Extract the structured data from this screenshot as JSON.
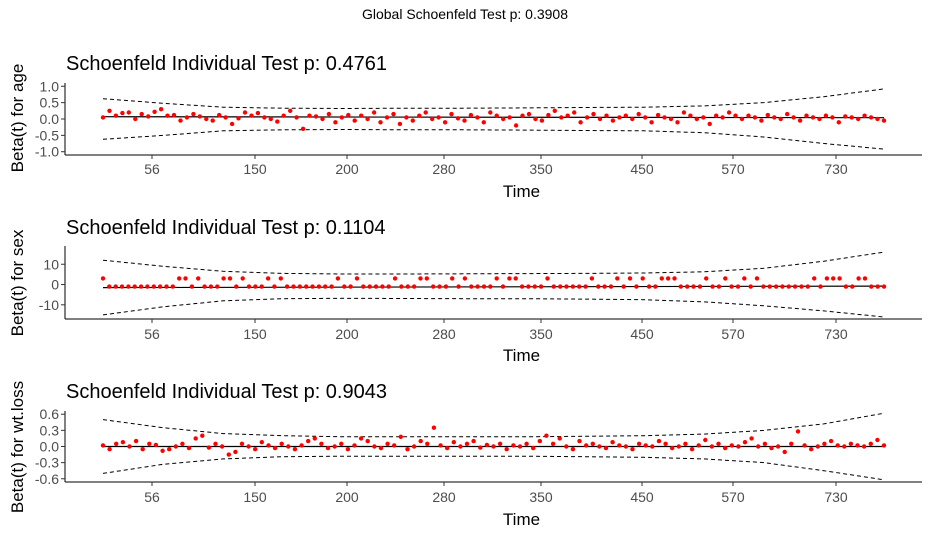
{
  "global_title": "Global Schoenfeld Test p: 0.3908",
  "chart_data": [
    {
      "type": "scatter",
      "title": "Schoenfeld Individual Test p: 0.4761",
      "xlabel": "Time",
      "ylabel": "Beta(t) for age",
      "x_tick_labels": [
        "56",
        "150",
        "200",
        "280",
        "350",
        "450",
        "570",
        "730"
      ],
      "y_ticks": [
        1.0,
        0.5,
        0.0,
        -0.5,
        -1.0
      ],
      "y_tick_labels": [
        "1.0",
        "0.5",
        "0.0",
        "-0.5",
        "-1.0"
      ],
      "ylim": [
        -1.1,
        1.1
      ],
      "point_color": "#ff0000",
      "series": [
        {
          "name": "residuals",
          "values": [
            0.05,
            0.25,
            0.1,
            0.18,
            0.2,
            0.0,
            0.15,
            0.08,
            0.22,
            0.3,
            0.1,
            0.12,
            -0.05,
            0.05,
            0.15,
            0.08,
            0.0,
            -0.05,
            0.12,
            0.05,
            -0.15,
            0.02,
            0.2,
            0.1,
            0.18,
            0.05,
            0.0,
            -0.08,
            0.1,
            0.25,
            0.05,
            -0.3,
            0.1,
            0.08,
            0.0,
            0.15,
            -0.1,
            0.05,
            0.12,
            -0.05,
            0.1,
            0.0,
            0.2,
            -0.1,
            0.05,
            0.15,
            -0.15,
            0.05,
            -0.05,
            0.1,
            0.2,
            0.0,
            0.05,
            -0.1,
            0.15,
            0.02,
            -0.05,
            0.12,
            0.05,
            -0.1,
            0.2,
            0.1,
            0.0,
            0.05,
            -0.2,
            0.1,
            0.15,
            0.0,
            -0.05,
            0.12,
            0.25,
            0.05,
            0.1,
            0.2,
            -0.1,
            0.05,
            0.15,
            0.0,
            0.1,
            -0.05,
            0.05,
            0.1,
            0.0,
            0.15,
            0.05,
            -0.1,
            0.12,
            0.05,
            0.0,
            -0.1,
            0.2,
            0.1,
            0.0,
            0.05,
            -0.15,
            0.1,
            0.05,
            0.2,
            0.1,
            0.0,
            0.1,
            0.05,
            -0.05,
            0.12,
            0.05,
            0.0,
            0.15,
            0.05,
            -0.05,
            0.1,
            0.05,
            0.0,
            0.1,
            0.05,
            -0.1,
            0.08,
            0.05,
            0.0,
            0.1,
            0.05,
            0.0,
            -0.05
          ]
        },
        {
          "name": "smooth",
          "values": [
            0.07,
            0.04
          ]
        },
        {
          "name": "ci_upper",
          "values": [
            0.62,
            0.48,
            0.36,
            0.33,
            0.32,
            0.33,
            0.33,
            0.34,
            0.35,
            0.36,
            0.4,
            0.5,
            0.68,
            0.92
          ]
        },
        {
          "name": "ci_lower",
          "values": [
            -0.62,
            -0.5,
            -0.36,
            -0.33,
            -0.32,
            -0.33,
            -0.33,
            -0.34,
            -0.35,
            -0.36,
            -0.42,
            -0.55,
            -0.75,
            -0.92
          ]
        }
      ]
    },
    {
      "type": "scatter",
      "title": "Schoenfeld Individual Test p: 0.1104",
      "xlabel": "Time",
      "ylabel": "Beta(t) for sex",
      "x_tick_labels": [
        "56",
        "150",
        "200",
        "280",
        "350",
        "450",
        "570",
        "730"
      ],
      "y_ticks": [
        10,
        0,
        -10
      ],
      "y_tick_labels": [
        "10",
        "0",
        "-10"
      ],
      "ylim": [
        -17,
        19
      ],
      "point_color": "#ff0000",
      "series": [
        {
          "name": "residuals",
          "values": [
            3,
            -1,
            -1,
            -1,
            -1,
            -1,
            -1,
            -1,
            -1,
            -1,
            -1,
            -1,
            3,
            3,
            -1,
            3,
            -1,
            -1,
            -1,
            3,
            3,
            -1,
            3,
            -1,
            -1,
            -1,
            3,
            -1,
            3,
            -1,
            -1,
            -1,
            -1,
            -1,
            -1,
            -1,
            -1,
            3,
            -1,
            -1,
            3,
            -1,
            -1,
            -1,
            -1,
            -1,
            3,
            -1,
            -1,
            -1,
            3,
            3,
            -1,
            -1,
            -1,
            3,
            -1,
            3,
            -1,
            -1,
            -1,
            -1,
            3,
            -1,
            3,
            3,
            -1,
            -1,
            -1,
            -1,
            3,
            -1,
            -1,
            -1,
            -1,
            -1,
            -1,
            3,
            -1,
            -1,
            -1,
            3,
            -1,
            3,
            -1,
            3,
            -1,
            -1,
            3,
            3,
            3,
            -1,
            -1,
            -1,
            -1,
            3,
            -1,
            -1,
            3,
            -1,
            -1,
            3,
            -1,
            3,
            -1,
            -1,
            -1,
            -1,
            -1,
            -1,
            -1,
            -1,
            3,
            -1,
            3,
            3,
            3,
            -1,
            -1,
            3,
            3,
            -1,
            -1,
            -1
          ]
        },
        {
          "name": "smooth",
          "values": [
            -1.5,
            -0.8
          ]
        },
        {
          "name": "ci_upper",
          "values": [
            12,
            9,
            6.5,
            5.5,
            5.2,
            5.2,
            5.3,
            5.4,
            5.5,
            5.7,
            6.3,
            8,
            11.5,
            16
          ]
        },
        {
          "name": "ci_lower",
          "values": [
            -15,
            -11,
            -8,
            -7,
            -6.8,
            -6.9,
            -7,
            -7,
            -7.2,
            -7.5,
            -8.5,
            -10.5,
            -13,
            -16
          ]
        }
      ]
    },
    {
      "type": "scatter",
      "title": "Schoenfeld Individual Test p: 0.9043",
      "xlabel": "Time",
      "ylabel": "Beta(t) for wt.loss",
      "x_tick_labels": [
        "56",
        "150",
        "200",
        "280",
        "350",
        "450",
        "570",
        "730"
      ],
      "y_ticks": [
        0.6,
        0.3,
        0.0,
        -0.3,
        -0.6
      ],
      "y_tick_labels": [
        "0.6",
        "0.3",
        "0.0",
        "-0.3",
        "-0.6"
      ],
      "ylim": [
        -0.66,
        0.66
      ],
      "point_color": "#ff0000",
      "series": [
        {
          "name": "residuals",
          "values": [
            0.02,
            -0.05,
            0.05,
            0.08,
            0.0,
            0.1,
            -0.05,
            0.05,
            0.03,
            -0.08,
            -0.05,
            0.0,
            0.05,
            -0.03,
            0.15,
            0.2,
            -0.02,
            0.05,
            0.0,
            -0.15,
            -0.1,
            0.05,
            0.0,
            -0.05,
            0.08,
            0.02,
            -0.03,
            0.05,
            0.0,
            -0.05,
            0.02,
            0.1,
            0.15,
            0.05,
            -0.03,
            0.0,
            0.05,
            -0.05,
            0.02,
            0.15,
            0.1,
            0.0,
            -0.03,
            0.05,
            0.02,
            0.18,
            -0.05,
            0.0,
            0.1,
            0.05,
            0.35,
            0.02,
            -0.03,
            0.08,
            0.0,
            0.05,
            0.1,
            -0.02,
            0.03,
            0.0,
            0.05,
            -0.05,
            0.02,
            0.0,
            0.05,
            -0.03,
            0.1,
            0.2,
            0.05,
            0.15,
            0.0,
            -0.05,
            0.1,
            0.02,
            0.05,
            0.0,
            -0.03,
            0.08,
            0.02,
            0.0,
            -0.05,
            0.05,
            0.02,
            0.0,
            0.1,
            0.05,
            -0.03,
            0.0,
            0.05,
            -0.05,
            0.02,
            0.12,
            0.0,
            0.05,
            -0.03,
            0.02,
            0.0,
            0.08,
            0.15,
            0.0,
            0.05,
            -0.03,
            0.0,
            -0.1,
            0.05,
            0.28,
            0.02,
            -0.05,
            0.0,
            0.05,
            0.1,
            0.02,
            0.0,
            0.05,
            0.02,
            0.0,
            0.05,
            0.12,
            0.02
          ]
        },
        {
          "name": "smooth",
          "values": [
            0.0,
            0.0
          ]
        },
        {
          "name": "ci_upper",
          "values": [
            0.5,
            0.35,
            0.24,
            0.2,
            0.18,
            0.18,
            0.18,
            0.18,
            0.19,
            0.2,
            0.23,
            0.3,
            0.42,
            0.62
          ]
        },
        {
          "name": "ci_lower",
          "values": [
            -0.5,
            -0.33,
            -0.23,
            -0.19,
            -0.18,
            -0.18,
            -0.18,
            -0.18,
            -0.19,
            -0.2,
            -0.23,
            -0.3,
            -0.45,
            -0.62
          ]
        }
      ]
    }
  ]
}
